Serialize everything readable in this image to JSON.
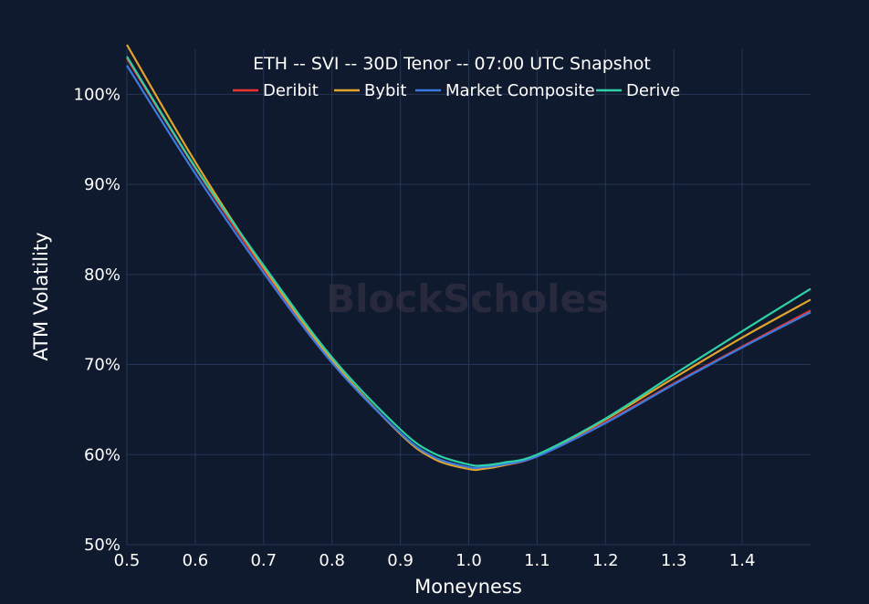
{
  "chart_data": {
    "type": "line",
    "title": "ETH -- SVI -- 30D Tenor -- 07:00 UTC Snapshot",
    "xlabel": "Moneyness",
    "ylabel": "ATM Volatility",
    "watermark": "BlockScholes",
    "xlim": [
      0.5,
      1.5
    ],
    "ylim": [
      50,
      105
    ],
    "x_ticks": [
      0.5,
      0.6,
      0.7,
      0.8,
      0.9,
      1.0,
      1.1,
      1.2,
      1.3,
      1.4
    ],
    "x_tick_labels": [
      "0.5",
      "0.6",
      "0.7",
      "0.8",
      "0.9",
      "1.0",
      "1.1",
      "1.2",
      "1.3",
      "1.4"
    ],
    "y_ticks": [
      50,
      60,
      70,
      80,
      90,
      100
    ],
    "y_tick_labels": [
      "50%",
      "60%",
      "70%",
      "80%",
      "90%",
      "100%"
    ],
    "grid": true,
    "legend_position": "top",
    "x": [
      0.5,
      0.6,
      0.7,
      0.8,
      0.9,
      0.95,
      1.0,
      1.02,
      1.05,
      1.1,
      1.2,
      1.3,
      1.4,
      1.5
    ],
    "series": [
      {
        "name": "Deribit",
        "color": "#e8342c",
        "values": [
          104.0,
          91.8,
          80.6,
          70.4,
          62.3,
          59.6,
          58.5,
          58.5,
          58.8,
          59.8,
          63.6,
          67.9,
          72.0,
          76.0
        ]
      },
      {
        "name": "Bybit",
        "color": "#e0a32c",
        "values": [
          105.5,
          92.5,
          80.8,
          70.5,
          62.3,
          59.5,
          58.4,
          58.4,
          58.8,
          59.9,
          63.9,
          68.5,
          73.0,
          77.2
        ]
      },
      {
        "name": "Market Composite",
        "color": "#3b7be0",
        "values": [
          103.2,
          91.2,
          80.2,
          70.2,
          62.4,
          59.7,
          58.6,
          58.6,
          58.9,
          59.8,
          63.5,
          67.8,
          71.9,
          75.8
        ]
      },
      {
        "name": "Derive",
        "color": "#2ed1a6",
        "values": [
          104.2,
          91.9,
          81.0,
          70.8,
          62.8,
          60.1,
          58.9,
          58.8,
          59.1,
          60.0,
          64.0,
          68.9,
          73.7,
          78.4
        ]
      }
    ]
  }
}
